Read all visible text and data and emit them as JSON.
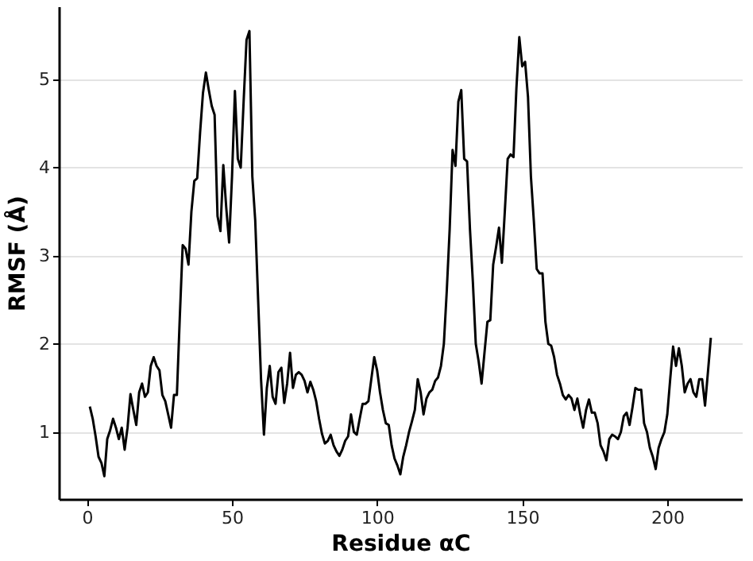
{
  "chart_data": {
    "type": "line",
    "xlabel": "Residue αC",
    "ylabel": "RMSF (Å)",
    "xlim": [
      -9.7,
      225.7
    ],
    "ylim": [
      0.24,
      5.83
    ],
    "xticks": [
      0,
      50,
      100,
      150,
      200
    ],
    "yticks": [
      1,
      2,
      3,
      4,
      5
    ],
    "grid": "y",
    "marker": "none",
    "line_style": "solid",
    "x": [
      1,
      2,
      3,
      4,
      5,
      6,
      7,
      8,
      9,
      10,
      11,
      12,
      13,
      14,
      15,
      16,
      17,
      18,
      19,
      20,
      21,
      22,
      23,
      24,
      25,
      26,
      27,
      28,
      29,
      30,
      31,
      32,
      33,
      34,
      35,
      36,
      37,
      38,
      39,
      40,
      41,
      42,
      43,
      44,
      45,
      46,
      47,
      48,
      49,
      50,
      51,
      52,
      53,
      54,
      55,
      56,
      57,
      58,
      59,
      60,
      61,
      62,
      63,
      64,
      65,
      66,
      67,
      68,
      69,
      70,
      71,
      72,
      73,
      74,
      75,
      76,
      77,
      78,
      79,
      80,
      81,
      82,
      83,
      84,
      85,
      86,
      87,
      88,
      89,
      90,
      91,
      92,
      93,
      94,
      95,
      96,
      97,
      98,
      99,
      100,
      101,
      102,
      103,
      104,
      105,
      106,
      107,
      108,
      109,
      110,
      111,
      112,
      113,
      114,
      115,
      116,
      117,
      118,
      119,
      120,
      121,
      122,
      123,
      124,
      125,
      126,
      127,
      128,
      129,
      130,
      131,
      132,
      133,
      134,
      135,
      136,
      137,
      138,
      139,
      140,
      141,
      142,
      143,
      144,
      145,
      146,
      147,
      148,
      149,
      150,
      151,
      152,
      153,
      154,
      155,
      156,
      157,
      158,
      159,
      160,
      161,
      162,
      163,
      164,
      165,
      166,
      167,
      168,
      169,
      170,
      171,
      172,
      173,
      174,
      175,
      176,
      177,
      178,
      179,
      180,
      181,
      182,
      183,
      184,
      185,
      186,
      187,
      188,
      189,
      190,
      191,
      192,
      193,
      194,
      195,
      196,
      197,
      198,
      199,
      200,
      201,
      202,
      203,
      204,
      205,
      206,
      207,
      208,
      209,
      210,
      211,
      212,
      213,
      214,
      215
    ],
    "series": [
      {
        "color": "#000000",
        "values": [
          1.29,
          1.15,
          0.95,
          0.72,
          0.65,
          0.5,
          0.92,
          1.02,
          1.15,
          1.05,
          0.92,
          1.05,
          0.8,
          1.05,
          1.43,
          1.25,
          1.08,
          1.45,
          1.55,
          1.4,
          1.45,
          1.75,
          1.85,
          1.75,
          1.7,
          1.42,
          1.35,
          1.2,
          1.05,
          1.42,
          1.42,
          2.3,
          3.12,
          3.08,
          2.9,
          3.5,
          3.85,
          3.88,
          4.4,
          4.85,
          5.08,
          4.88,
          4.7,
          4.6,
          3.45,
          3.28,
          4.03,
          3.55,
          3.15,
          3.9,
          4.87,
          4.1,
          4.0,
          4.75,
          5.45,
          5.55,
          3.9,
          3.4,
          2.5,
          1.6,
          0.97,
          1.5,
          1.75,
          1.4,
          1.32,
          1.68,
          1.73,
          1.33,
          1.55,
          1.9,
          1.5,
          1.65,
          1.68,
          1.65,
          1.58,
          1.45,
          1.57,
          1.48,
          1.35,
          1.15,
          0.98,
          0.87,
          0.9,
          0.97,
          0.85,
          0.78,
          0.73,
          0.8,
          0.9,
          0.95,
          1.2,
          1.0,
          0.97,
          1.15,
          1.32,
          1.32,
          1.35,
          1.6,
          1.85,
          1.7,
          1.45,
          1.25,
          1.1,
          1.08,
          0.85,
          0.7,
          0.62,
          0.52,
          0.72,
          0.85,
          1.0,
          1.12,
          1.25,
          1.6,
          1.45,
          1.2,
          1.38,
          1.45,
          1.48,
          1.58,
          1.62,
          1.75,
          2.0,
          2.6,
          3.3,
          4.2,
          4.02,
          4.75,
          4.88,
          4.1,
          4.07,
          3.3,
          2.7,
          2.0,
          1.8,
          1.55,
          1.9,
          2.25,
          2.27,
          2.9,
          3.1,
          3.32,
          2.92,
          3.5,
          4.1,
          4.15,
          4.12,
          4.9,
          5.48,
          5.15,
          5.2,
          4.8,
          3.9,
          3.4,
          2.85,
          2.8,
          2.8,
          2.25,
          2.0,
          1.98,
          1.85,
          1.65,
          1.55,
          1.42,
          1.37,
          1.42,
          1.38,
          1.25,
          1.38,
          1.2,
          1.05,
          1.25,
          1.37,
          1.22,
          1.22,
          1.1,
          0.85,
          0.78,
          0.68,
          0.92,
          0.97,
          0.95,
          0.92,
          1.0,
          1.18,
          1.22,
          1.08,
          1.28,
          1.5,
          1.48,
          1.48,
          1.1,
          1.0,
          0.82,
          0.72,
          0.58,
          0.82,
          0.92,
          1.0,
          1.2,
          1.6,
          1.97,
          1.75,
          1.95,
          1.75,
          1.45,
          1.55,
          1.6,
          1.45,
          1.4,
          1.6,
          1.6,
          1.3,
          1.68,
          2.07
        ]
      }
    ]
  }
}
